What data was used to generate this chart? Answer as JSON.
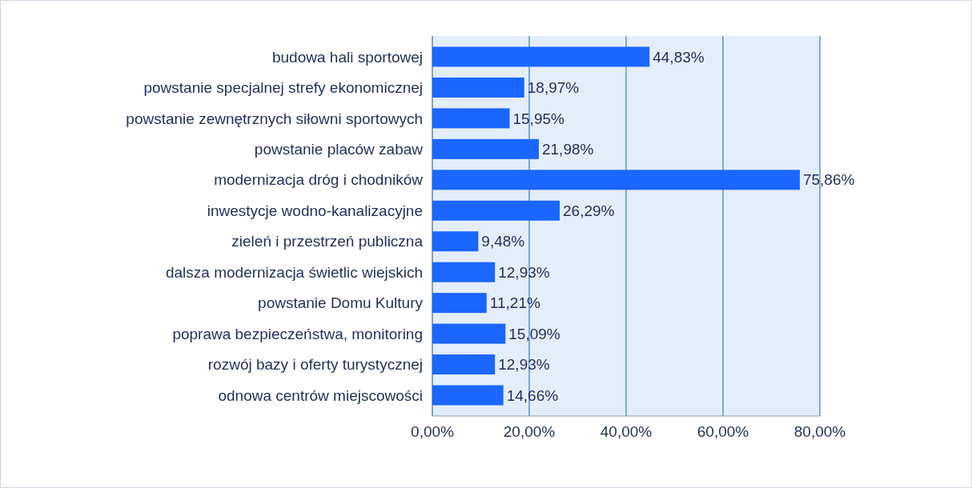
{
  "chart_data": {
    "type": "bar",
    "orientation": "horizontal",
    "categories": [
      "budowa hali sportowej",
      "powstanie specjalnej strefy ekonomicznej",
      "powstanie zewnętrznych siłowni sportowych",
      "powstanie placów zabaw",
      "modernizacja dróg i chodników",
      "inwestycje wodno-kanalizacyjne",
      "zieleń i przestrzeń publiczna",
      "dalsza modernizacja świetlic wiejskich",
      "powstanie Domu Kultury",
      "poprawa bezpieczeństwa, monitoring",
      "rozwój bazy i oferty turystycznej",
      "odnowa centrów miejscowości"
    ],
    "values": [
      44.83,
      18.97,
      15.95,
      21.98,
      75.86,
      26.29,
      9.48,
      12.93,
      11.21,
      15.09,
      12.93,
      14.66
    ],
    "value_labels": [
      "44,83%",
      "18,97%",
      "15,95%",
      "21,98%",
      "75,86%",
      "26,29%",
      "9,48%",
      "12,93%",
      "11,21%",
      "15,09%",
      "12,93%",
      "14,66%"
    ],
    "color": "#1a66ff",
    "xlim": [
      0,
      80
    ],
    "xticks": [
      {
        "value": 0,
        "label": "0,00%"
      },
      {
        "value": 20,
        "label": "20,00%"
      },
      {
        "value": 40,
        "label": "40,00%"
      },
      {
        "value": 60,
        "label": "60,00%"
      },
      {
        "value": 80,
        "label": "80,00%"
      }
    ],
    "grid": "x"
  }
}
